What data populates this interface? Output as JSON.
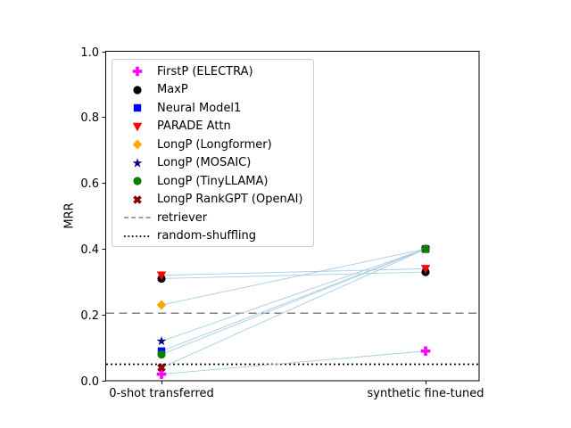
{
  "chart_data": {
    "type": "line",
    "ylabel": "MRR",
    "categories": [
      "0-shot transferred",
      "synthetic fine-tuned"
    ],
    "ylim": [
      0.0,
      1.0
    ],
    "ytick_labels": [
      "0.0",
      "0.2",
      "0.4",
      "0.6",
      "0.8",
      "1.0"
    ],
    "grid": false,
    "legend_position": "upper left",
    "connector_color": "#a8cee4",
    "series": [
      {
        "name": "FirstP (ELECTRA)",
        "marker": "plus",
        "color": "#ff00ff",
        "values": [
          0.02,
          0.09
        ]
      },
      {
        "name": "MaxP",
        "marker": "circle",
        "color": "#000000",
        "values": [
          0.31,
          0.33
        ]
      },
      {
        "name": "Neural Model1",
        "marker": "square",
        "color": "#0000ff",
        "values": [
          0.09,
          0.4
        ]
      },
      {
        "name": "PARADE Attn",
        "marker": "triangle-down",
        "color": "#ff0000",
        "values": [
          0.32,
          0.34
        ]
      },
      {
        "name": "LongP (Longformer)",
        "marker": "diamond",
        "color": "#ffa500",
        "values": [
          0.23,
          0.4
        ]
      },
      {
        "name": "LongP (MOSAIC)",
        "marker": "star",
        "color": "#000080",
        "values": [
          0.12,
          0.4
        ]
      },
      {
        "name": "LongP (TinyLLAMA)",
        "marker": "circle",
        "color": "#008000",
        "values": [
          0.08,
          0.4
        ]
      },
      {
        "name": "LongP RankGPT (OpenAI)",
        "marker": "x",
        "color": "#8b0000",
        "values": [
          0.04,
          0.4
        ]
      }
    ],
    "reference_lines": [
      {
        "name": "retriever",
        "style": "dashed",
        "color": "#808080",
        "value": 0.205
      },
      {
        "name": "random-shuffling",
        "style": "dotted",
        "color": "#000000",
        "value": 0.05
      }
    ]
  }
}
